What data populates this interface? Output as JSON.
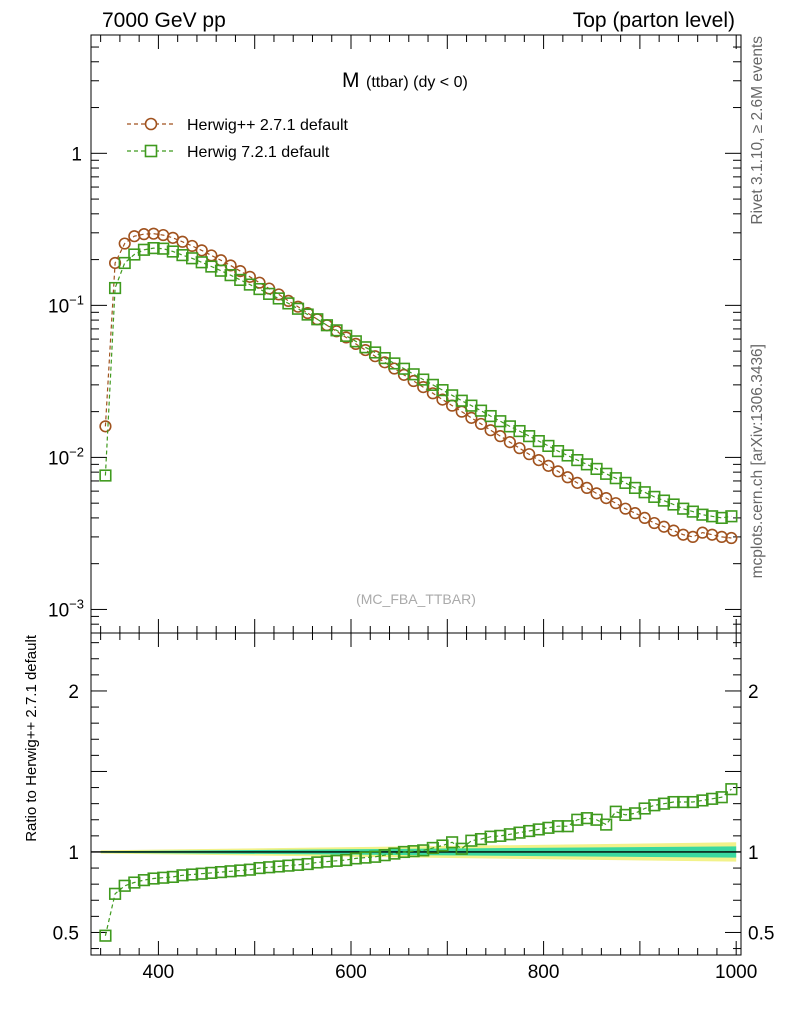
{
  "header": {
    "left": "7000 GeV pp",
    "right": "Top (parton level)"
  },
  "side_labels": {
    "rivet": "Rivet 3.1.10, ≥ 2.6M events",
    "mcplots": "mcplots.cern.ch [arXiv:1306.3436]"
  },
  "watermark": "(MC_FBA_TTBAR)",
  "colors": {
    "herwigpp": "#a0521e",
    "herwig7": "#3f9a1e",
    "band_inner": "#3ad8a0",
    "band_outer": "#f2f28a"
  },
  "chart_data": [
    {
      "type": "line",
      "title": "M (ttbar) (dy < 0)",
      "title_main": "M",
      "title_sub": "(ttbar) (dy < 0)",
      "x_scale": "linear",
      "y_scale": "log",
      "xlim": [
        330,
        1005
      ],
      "ylim": [
        0.0007,
        6
      ],
      "y_ticks": [
        0.001,
        0.01,
        0.1,
        1
      ],
      "y_tick_labels": [
        "10^-3",
        "10^-2",
        "10^-1",
        "1"
      ],
      "legend_position": "top-left",
      "x": [
        345,
        355,
        365,
        375,
        385,
        395,
        405,
        415,
        425,
        435,
        445,
        455,
        465,
        475,
        485,
        495,
        505,
        515,
        525,
        535,
        545,
        555,
        565,
        575,
        585,
        595,
        605,
        615,
        625,
        635,
        645,
        655,
        665,
        675,
        685,
        695,
        705,
        715,
        725,
        735,
        745,
        755,
        765,
        775,
        785,
        795,
        805,
        815,
        825,
        835,
        845,
        855,
        865,
        875,
        885,
        895,
        905,
        915,
        925,
        935,
        945,
        955,
        965,
        975,
        985,
        995
      ],
      "series": [
        {
          "name": "Herwig++ 2.7.1 default",
          "marker": "circle",
          "color": "#a0521e",
          "values": [
            0.016,
            0.19,
            0.255,
            0.285,
            0.294,
            0.296,
            0.29,
            0.278,
            0.262,
            0.246,
            0.23,
            0.213,
            0.198,
            0.183,
            0.168,
            0.154,
            0.141,
            0.129,
            0.118,
            0.107,
            0.098,
            0.089,
            0.081,
            0.074,
            0.0675,
            0.0615,
            0.0558,
            0.0508,
            0.0463,
            0.0422,
            0.0384,
            0.0349,
            0.0318,
            0.029,
            0.0264,
            0.024,
            0.0219,
            0.02,
            0.0182,
            0.0166,
            0.0151,
            0.0138,
            0.0126,
            0.0115,
            0.0105,
            0.0096,
            0.0088,
            0.0081,
            0.0074,
            0.0068,
            0.0063,
            0.0058,
            0.0054,
            0.005,
            0.0046,
            0.0043,
            0.004,
            0.0037,
            0.0035,
            0.0033,
            0.0031,
            0.003,
            0.0032,
            0.0031,
            0.003,
            0.00295
          ]
        },
        {
          "name": "Herwig 7.2.1 default",
          "marker": "square",
          "color": "#3f9a1e",
          "values": [
            0.0076,
            0.13,
            0.19,
            0.216,
            0.232,
            0.238,
            0.236,
            0.226,
            0.214,
            0.204,
            0.192,
            0.18,
            0.169,
            0.158,
            0.147,
            0.137,
            0.128,
            0.119,
            0.111,
            0.103,
            0.095,
            0.087,
            0.081,
            0.074,
            0.0685,
            0.063,
            0.058,
            0.053,
            0.049,
            0.045,
            0.0415,
            0.0383,
            0.0352,
            0.0325,
            0.03,
            0.0277,
            0.0256,
            0.0236,
            0.0219,
            0.0203,
            0.0187,
            0.0173,
            0.016,
            0.0149,
            0.0138,
            0.0128,
            0.0119,
            0.011,
            0.0103,
            0.0096,
            0.009,
            0.0084,
            0.0078,
            0.0073,
            0.0068,
            0.0063,
            0.0059,
            0.0055,
            0.0052,
            0.0049,
            0.0046,
            0.0044,
            0.0042,
            0.0041,
            0.004,
            0.0041
          ]
        }
      ]
    },
    {
      "type": "line",
      "ylabel": "Ratio to Herwig++ 2.7.1 default",
      "x_scale": "linear",
      "y_scale": "linear",
      "xlim": [
        330,
        1005
      ],
      "ylim": [
        0.36,
        2.36
      ],
      "x_ticks": [
        400,
        600,
        800,
        1000
      ],
      "y_ticks": [
        0.5,
        1,
        2
      ],
      "y_tick_labels": [
        "0.5",
        "1",
        "2"
      ],
      "reference_line": 1,
      "x": [
        345,
        355,
        365,
        375,
        385,
        395,
        405,
        415,
        425,
        435,
        445,
        455,
        465,
        475,
        485,
        495,
        505,
        515,
        525,
        535,
        545,
        555,
        565,
        575,
        585,
        595,
        605,
        615,
        625,
        635,
        645,
        655,
        665,
        675,
        685,
        695,
        705,
        715,
        725,
        735,
        745,
        755,
        765,
        775,
        785,
        795,
        805,
        815,
        825,
        835,
        845,
        855,
        865,
        875,
        885,
        895,
        905,
        915,
        925,
        935,
        945,
        955,
        965,
        975,
        985,
        995
      ],
      "band": {
        "inner_half_width_start": 0.005,
        "inner_half_width_end": 0.035,
        "outer_half_width_start": 0.01,
        "outer_half_width_end": 0.06
      },
      "series": [
        {
          "name": "Herwig 7.2.1 default",
          "marker": "square",
          "color": "#3f9a1e",
          "values": [
            0.48,
            0.74,
            0.79,
            0.81,
            0.825,
            0.835,
            0.84,
            0.845,
            0.855,
            0.86,
            0.865,
            0.87,
            0.875,
            0.88,
            0.885,
            0.89,
            0.9,
            0.905,
            0.91,
            0.915,
            0.92,
            0.925,
            0.935,
            0.94,
            0.945,
            0.95,
            0.96,
            0.965,
            0.97,
            0.98,
            0.99,
            1.0,
            1.005,
            1.01,
            1.025,
            1.04,
            1.06,
            1.02,
            1.07,
            1.08,
            1.095,
            1.1,
            1.11,
            1.12,
            1.13,
            1.14,
            1.15,
            1.16,
            1.16,
            1.2,
            1.21,
            1.2,
            1.17,
            1.25,
            1.23,
            1.24,
            1.27,
            1.29,
            1.3,
            1.31,
            1.31,
            1.31,
            1.32,
            1.33,
            1.34,
            1.39
          ]
        }
      ]
    }
  ]
}
